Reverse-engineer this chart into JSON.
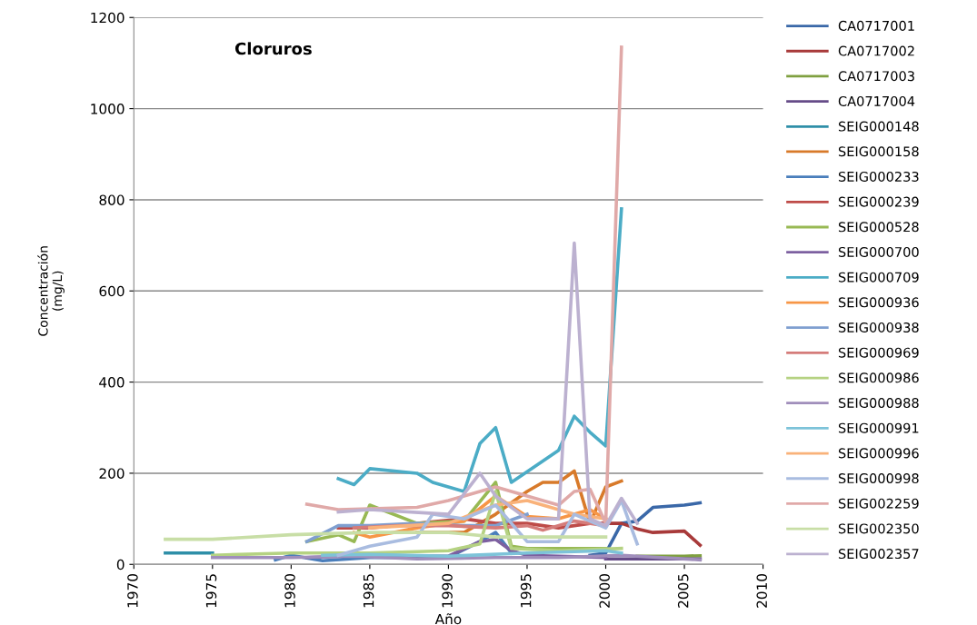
{
  "chart_data": {
    "type": "line",
    "title": "Cloruros",
    "xlabel": "Año",
    "ylabel": "Concentración\n(mg/L)",
    "xlim": [
      1970,
      2010
    ],
    "xticks": [
      1970,
      1975,
      1980,
      1985,
      1990,
      1995,
      2000,
      2005,
      2010
    ],
    "ylim": [
      0,
      1200
    ],
    "yticks": [
      0,
      200,
      400,
      600,
      800,
      1000,
      1200
    ],
    "grid": "y",
    "legend": "right",
    "marker": "none",
    "line_style": "solid",
    "series": [
      {
        "name": "CA0717001",
        "color": "#3a68a8",
        "x": [
          1999,
          2000,
          2001,
          2002,
          2003,
          2005,
          2006
        ],
        "values": [
          20,
          25,
          90,
          95,
          125,
          130,
          135
        ]
      },
      {
        "name": "CA0717002",
        "color": "#a83a3a",
        "x": [
          1999,
          2000,
          2001,
          2002,
          2003,
          2005,
          2006
        ],
        "values": [
          90,
          90,
          90,
          78,
          70,
          73,
          42
        ]
      },
      {
        "name": "CA0717003",
        "color": "#7fa040",
        "x": [
          2002,
          2003,
          2005,
          2006
        ],
        "values": [
          18,
          18,
          18,
          19
        ]
      },
      {
        "name": "CA0717004",
        "color": "#664c88",
        "x": [
          2000,
          2001,
          2002,
          2003,
          2005,
          2006
        ],
        "values": [
          12,
          12,
          12,
          12,
          12,
          12
        ]
      },
      {
        "name": "SEIG000148",
        "color": "#2f8fa8",
        "x": [
          1972,
          1975
        ],
        "values": [
          25,
          25
        ]
      },
      {
        "name": "SEIG000158",
        "color": "#d87a2a",
        "x": [
          1988,
          1991,
          1993,
          1995,
          1996,
          1997,
          1998,
          1999,
          2000,
          2001
        ],
        "values": [
          70,
          70,
          110,
          160,
          180,
          180,
          205,
          90,
          170,
          183
        ]
      },
      {
        "name": "SEIG000233",
        "color": "#4a7ebb",
        "x": [
          1979,
          1980,
          1982,
          1985,
          1990,
          1992,
          1993,
          1994
        ],
        "values": [
          10,
          20,
          8,
          15,
          15,
          50,
          70,
          25
        ]
      },
      {
        "name": "SEIG000239",
        "color": "#be4b48",
        "x": [
          1983,
          1985,
          1988,
          1991,
          1993,
          1995,
          1997,
          1999,
          2000
        ],
        "values": [
          80,
          80,
          90,
          100,
          90,
          90,
          80,
          90,
          90
        ]
      },
      {
        "name": "SEIG000528",
        "color": "#98b954",
        "x": [
          1981,
          1983,
          1984,
          1985,
          1988,
          1991,
          1993,
          1994,
          1995,
          2000
        ],
        "values": [
          50,
          65,
          50,
          130,
          90,
          95,
          180,
          40,
          35,
          35
        ]
      },
      {
        "name": "SEIG000700",
        "color": "#7d60a0",
        "x": [
          1981,
          1985,
          1990,
          1992,
          1993,
          1994,
          1995,
          2000
        ],
        "values": [
          15,
          20,
          18,
          50,
          55,
          30,
          20,
          15
        ]
      },
      {
        "name": "SEIG000709",
        "color": "#4bacc6",
        "x": [
          1983,
          1984,
          1985,
          1988,
          1989,
          1991,
          1992,
          1993,
          1994,
          1997,
          1998,
          1999,
          2000,
          2001
        ],
        "values": [
          188,
          175,
          210,
          200,
          180,
          160,
          265,
          300,
          180,
          250,
          325,
          290,
          260,
          780
        ]
      },
      {
        "name": "SEIG000936",
        "color": "#f79646",
        "x": [
          1984,
          1985,
          1988,
          1991,
          1993,
          1995,
          1997,
          1999,
          2000
        ],
        "values": [
          70,
          60,
          80,
          95,
          150,
          105,
          100,
          120,
          100
        ]
      },
      {
        "name": "SEIG000938",
        "color": "#7f9fd0",
        "x": [
          1981,
          1983,
          1985,
          1988,
          1991,
          1993,
          1995
        ],
        "values": [
          50,
          85,
          85,
          90,
          85,
          85,
          110
        ]
      },
      {
        "name": "SEIG000969",
        "color": "#d57c7a",
        "x": [
          1984,
          1987,
          1990,
          1993,
          1995,
          1996,
          1998,
          2000
        ],
        "values": [
          80,
          85,
          85,
          80,
          85,
          75,
          95,
          85
        ]
      },
      {
        "name": "SEIG000986",
        "color": "#b5d282",
        "x": [
          1975,
          1980,
          1983,
          1985,
          1990,
          1992,
          1993,
          1994,
          1997,
          2001
        ],
        "values": [
          20,
          25,
          25,
          25,
          30,
          45,
          160,
          35,
          30,
          35
        ]
      },
      {
        "name": "SEIG000988",
        "color": "#a08ebb",
        "x": [
          1975,
          1980,
          1984,
          1988,
          1993,
          1997,
          2001,
          2006
        ],
        "values": [
          15,
          15,
          18,
          12,
          15,
          15,
          20,
          10
        ]
      },
      {
        "name": "SEIG000991",
        "color": "#7dc3d9",
        "x": [
          1982,
          1985,
          1990,
          1995,
          2000,
          2001
        ],
        "values": [
          20,
          22,
          18,
          25,
          30,
          25
        ]
      },
      {
        "name": "SEIG000996",
        "color": "#f9b27a",
        "x": [
          1985,
          1990,
          1993,
          1995,
          1996,
          1998,
          2000
        ],
        "values": [
          80,
          90,
          130,
          140,
          130,
          110,
          100
        ]
      },
      {
        "name": "SEIG000998",
        "color": "#a9bce0",
        "x": [
          1983,
          1985,
          1988,
          1989,
          1991,
          1993,
          1995,
          1997,
          1998,
          2000,
          2001,
          2002
        ],
        "values": [
          20,
          40,
          60,
          110,
          100,
          130,
          50,
          50,
          110,
          80,
          140,
          45
        ]
      },
      {
        "name": "SEIG002259",
        "color": "#e0a9a8",
        "x": [
          1981,
          1983,
          1988,
          1990,
          1991,
          1993,
          1995,
          1997,
          1998,
          1999,
          2000,
          2001
        ],
        "values": [
          132,
          120,
          125,
          140,
          150,
          170,
          150,
          130,
          160,
          165,
          90,
          1135
        ]
      },
      {
        "name": "SEIG002350",
        "color": "#c8dea6",
        "x": [
          1972,
          1975,
          1980,
          1985,
          1990,
          1993,
          1996,
          2000
        ],
        "values": [
          55,
          55,
          65,
          70,
          70,
          60,
          60,
          60
        ]
      },
      {
        "name": "SEIG002357",
        "color": "#bcb1d0",
        "x": [
          1983,
          1985,
          1990,
          1992,
          1993,
          1995,
          1997,
          1998,
          1999,
          2000,
          2001,
          2002
        ],
        "values": [
          115,
          120,
          110,
          200,
          150,
          100,
          100,
          705,
          100,
          85,
          145,
          90
        ]
      }
    ]
  }
}
